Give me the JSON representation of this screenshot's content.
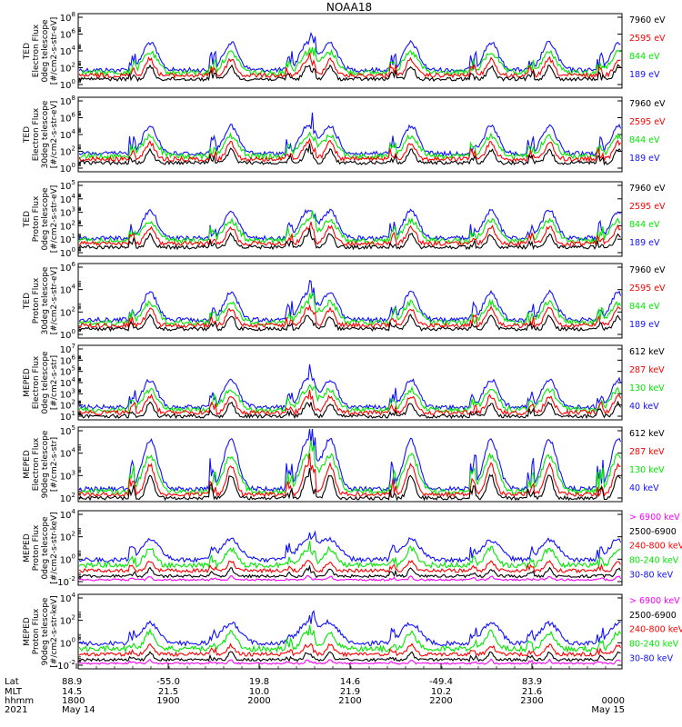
{
  "title": "NOAA18",
  "colors": {
    "blue": "#1010ff",
    "red": "#ff0000",
    "green": "#00e800",
    "black": "#000000",
    "magenta": "#ff00ff"
  },
  "panels": [
    {
      "ylabel": [
        "TED",
        "Electron Flux",
        "0deg telescope",
        "[#/cm2-s-str-eV]"
      ],
      "yticks": [
        "10^8",
        "10^6",
        "10^4",
        "10^2",
        "10^0"
      ],
      "legend": [
        {
          "text": "7960 eV",
          "color": "black"
        },
        {
          "text": "2595 eV",
          "color": "red"
        },
        {
          "text": "844 eV",
          "color": "green"
        },
        {
          "text": "189 eV",
          "color": "blue"
        }
      ]
    },
    {
      "ylabel": [
        "TED",
        "Electron Flux",
        "30deg telescope",
        "[#/cm2-s-str-eV]"
      ],
      "yticks": [
        "10^8",
        "10^6",
        "10^4",
        "10^2",
        "10^0"
      ],
      "legend": [
        {
          "text": "7960 eV",
          "color": "black"
        },
        {
          "text": "2595 eV",
          "color": "red"
        },
        {
          "text": "844 eV",
          "color": "green"
        },
        {
          "text": "189 eV",
          "color": "blue"
        }
      ]
    },
    {
      "ylabel": [
        "TED",
        "Proton Flux",
        "0deg telescope",
        "[#/cm2-s-str-eV]"
      ],
      "yticks": [
        "10^5",
        "10^4",
        "10^3",
        "10^2",
        "10^1",
        "10^0"
      ],
      "legend": [
        {
          "text": "7960 eV",
          "color": "black"
        },
        {
          "text": "2595 eV",
          "color": "red"
        },
        {
          "text": "844 eV",
          "color": "green"
        },
        {
          "text": "189 eV",
          "color": "blue"
        }
      ]
    },
    {
      "ylabel": [
        "TED",
        "Proton Flux",
        "30deg telescope",
        "[#/cm2-s-str-eV]"
      ],
      "yticks": [
        "10^6",
        "10^4",
        "10^2",
        "10^0"
      ],
      "legend": [
        {
          "text": "7960 eV",
          "color": "black"
        },
        {
          "text": "2595 eV",
          "color": "red"
        },
        {
          "text": "844 eV",
          "color": "green"
        },
        {
          "text": "189 eV",
          "color": "blue"
        }
      ]
    },
    {
      "ylabel": [
        "MEPED",
        "Electron Flux",
        "0deg telescope",
        "[#/cm2-s-str]"
      ],
      "yticks": [
        "10^7",
        "10^6",
        "10^5",
        "10^4",
        "10^3",
        "10^2",
        "10^1"
      ],
      "legend": [
        {
          "text": "612 keV",
          "color": "black"
        },
        {
          "text": "287 keV",
          "color": "red"
        },
        {
          "text": "130 keV",
          "color": "green"
        },
        {
          "text": "40 keV",
          "color": "blue"
        }
      ]
    },
    {
      "ylabel": [
        "MEPED",
        "Electron Flux",
        "90deg telescope",
        "[#/cm2-s-str]"
      ],
      "yticks": [
        "10^5",
        "10^4",
        "10^3",
        "10^2"
      ],
      "legend": [
        {
          "text": "612 keV",
          "color": "black"
        },
        {
          "text": "287 keV",
          "color": "red"
        },
        {
          "text": "130 keV",
          "color": "green"
        },
        {
          "text": "40 keV",
          "color": "blue"
        }
      ]
    },
    {
      "ylabel": [
        "MEPED",
        "Proton Flux",
        "0deg telescope",
        "[#/cm2-s-str-keV]"
      ],
      "yticks": [
        "10^4",
        "10^2",
        "10^0",
        "10^-2"
      ],
      "legend": [
        {
          "text": "> 6900 keV",
          "color": "magenta"
        },
        {
          "text": "2500-6900",
          "color": "black"
        },
        {
          "text": "240-800 keV",
          "color": "red"
        },
        {
          "text": "80-240 keV",
          "color": "green"
        },
        {
          "text": "30-80 keV",
          "color": "blue"
        }
      ]
    },
    {
      "ylabel": [
        "MEPED",
        "Proton Flux",
        "90deg telescope",
        "[#/cm2-s-str-keV]"
      ],
      "yticks": [
        "10^4",
        "10^2",
        "10^0",
        "10^-2"
      ],
      "legend": [
        {
          "text": "> 6900 keV",
          "color": "magenta"
        },
        {
          "text": "2500-6900",
          "color": "black"
        },
        {
          "text": "240-800 keV",
          "color": "red"
        },
        {
          "text": "80-240 keV",
          "color": "green"
        },
        {
          "text": "30-80 keV",
          "color": "blue"
        }
      ]
    }
  ],
  "xaxis": {
    "row_labels": [
      "Lat",
      "MLT",
      "hhmm",
      "2021"
    ],
    "ticks": [
      {
        "lat": "88.9",
        "mlt": "14.5",
        "hhmm": "1800",
        "date": "May 14"
      },
      {
        "lat": "-55.0",
        "mlt": "21.5",
        "hhmm": "1900",
        "date": ""
      },
      {
        "lat": "19.8",
        "mlt": "10.0",
        "hhmm": "2000",
        "date": ""
      },
      {
        "lat": "14.6",
        "mlt": "21.9",
        "hhmm": "2100",
        "date": ""
      },
      {
        "lat": "-49.4",
        "mlt": "10.2",
        "hhmm": "2200",
        "date": ""
      },
      {
        "lat": "83.9",
        "mlt": "21.6",
        "hhmm": "2300",
        "date": ""
      },
      {
        "lat": "",
        "mlt": "",
        "hhmm": "0000",
        "date": "May 15"
      }
    ]
  },
  "chart_data": {
    "type": "line",
    "title": "NOAA18",
    "x_unit": "UT hhmm",
    "x_range": [
      "1800",
      "0000"
    ],
    "series_note": "Multi-panel particle flux time series; traces drawn procedurally",
    "panels": 8
  }
}
